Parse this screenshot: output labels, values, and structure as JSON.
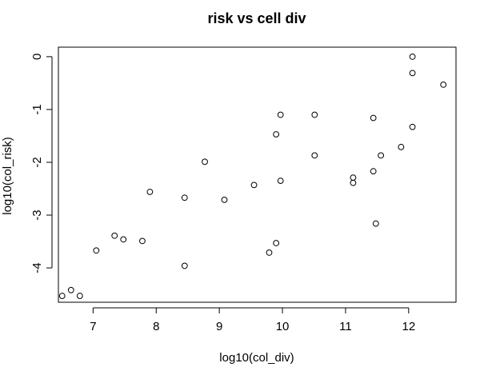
{
  "chart_data": {
    "type": "scatter",
    "title": "risk vs cell div",
    "xlabel": "log10(col_div)",
    "ylabel": "log10(col_risk)",
    "xlim": [
      6.45,
      12.75
    ],
    "ylim": [
      -4.65,
      0.18
    ],
    "xticks": [
      7,
      8,
      9,
      10,
      11,
      12
    ],
    "yticks": [
      -4,
      -3,
      -2,
      -1,
      0
    ],
    "grid": false,
    "marker": "open-circle",
    "colors": {
      "point": "#000000",
      "axis": "#000000",
      "background": "#ffffff"
    },
    "points": [
      {
        "x": 6.51,
        "y": -4.53
      },
      {
        "x": 6.65,
        "y": -4.42
      },
      {
        "x": 6.79,
        "y": -4.53
      },
      {
        "x": 7.05,
        "y": -3.67
      },
      {
        "x": 7.34,
        "y": -3.39
      },
      {
        "x": 7.48,
        "y": -3.46
      },
      {
        "x": 7.78,
        "y": -3.49
      },
      {
        "x": 7.9,
        "y": -2.56
      },
      {
        "x": 8.45,
        "y": -2.67
      },
      {
        "x": 8.45,
        "y": -3.96
      },
      {
        "x": 8.77,
        "y": -1.99
      },
      {
        "x": 9.08,
        "y": -2.71
      },
      {
        "x": 9.55,
        "y": -2.43
      },
      {
        "x": 9.79,
        "y": -3.71
      },
      {
        "x": 9.9,
        "y": -1.47
      },
      {
        "x": 9.9,
        "y": -3.53
      },
      {
        "x": 9.97,
        "y": -1.1
      },
      {
        "x": 9.97,
        "y": -2.35
      },
      {
        "x": 10.51,
        "y": -1.1
      },
      {
        "x": 10.51,
        "y": -1.87
      },
      {
        "x": 11.12,
        "y": -2.29
      },
      {
        "x": 11.12,
        "y": -2.39
      },
      {
        "x": 11.44,
        "y": -1.16
      },
      {
        "x": 11.44,
        "y": -2.17
      },
      {
        "x": 11.48,
        "y": -3.16
      },
      {
        "x": 11.56,
        "y": -1.87
      },
      {
        "x": 11.88,
        "y": -1.71
      },
      {
        "x": 12.06,
        "y": 0.0
      },
      {
        "x": 12.06,
        "y": -0.31
      },
      {
        "x": 12.06,
        "y": -1.33
      },
      {
        "x": 12.55,
        "y": -0.53
      }
    ]
  }
}
